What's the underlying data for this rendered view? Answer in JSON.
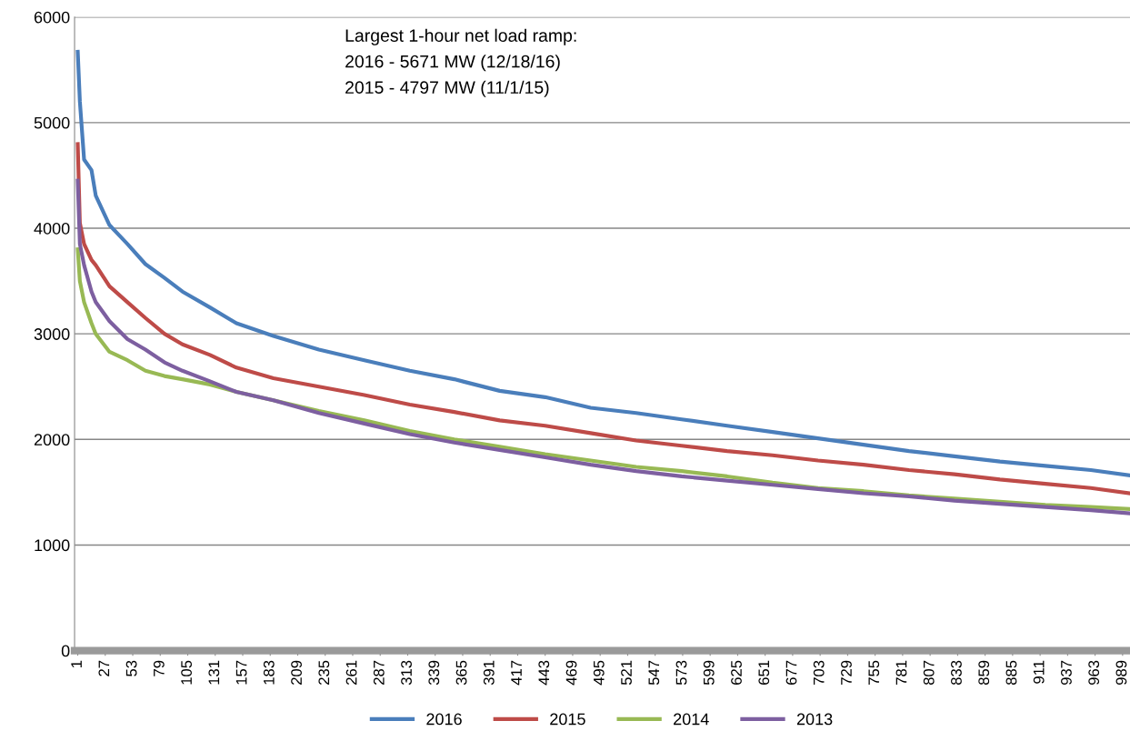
{
  "chart_data": {
    "type": "line",
    "annotations": [
      "Largest 1-hour net load ramp:",
      "2016 - 5671 MW (12/18/16)",
      "2015 - 4797 MW (11/1/15)"
    ],
    "x": [
      1,
      3,
      7,
      14,
      18,
      31,
      48,
      65,
      83,
      100,
      126,
      151,
      186,
      229,
      272,
      315,
      357,
      400,
      443,
      486,
      529,
      572,
      615,
      658,
      701,
      744,
      787,
      830,
      873,
      916,
      959,
      996
    ],
    "series": [
      {
        "name": "2016",
        "color": "#4a7ebb",
        "values": [
          5671,
          5200,
          4650,
          4550,
          4310,
          4030,
          3850,
          3660,
          3530,
          3400,
          3250,
          3100,
          2980,
          2850,
          2750,
          2650,
          2570,
          2460,
          2400,
          2300,
          2250,
          2190,
          2130,
          2070,
          2010,
          1950,
          1890,
          1840,
          1790,
          1750,
          1710,
          1660
        ]
      },
      {
        "name": "2015",
        "color": "#be4b48",
        "values": [
          4797,
          4050,
          3850,
          3700,
          3650,
          3450,
          3300,
          3150,
          3000,
          2900,
          2800,
          2680,
          2580,
          2500,
          2420,
          2330,
          2260,
          2180,
          2130,
          2060,
          1990,
          1940,
          1890,
          1850,
          1800,
          1760,
          1710,
          1670,
          1620,
          1580,
          1540,
          1490
        ]
      },
      {
        "name": "2014",
        "color": "#98b954",
        "values": [
          3800,
          3500,
          3300,
          3100,
          3000,
          2830,
          2750,
          2650,
          2600,
          2570,
          2520,
          2450,
          2370,
          2270,
          2180,
          2080,
          2000,
          1930,
          1860,
          1800,
          1740,
          1700,
          1650,
          1590,
          1540,
          1510,
          1470,
          1440,
          1410,
          1380,
          1360,
          1340
        ]
      },
      {
        "name": "2013",
        "color": "#7d5fa0",
        "values": [
          4450,
          3850,
          3650,
          3400,
          3300,
          3120,
          2950,
          2850,
          2730,
          2650,
          2550,
          2450,
          2370,
          2250,
          2150,
          2050,
          1970,
          1900,
          1830,
          1760,
          1700,
          1650,
          1610,
          1570,
          1530,
          1490,
          1460,
          1420,
          1390,
          1360,
          1330,
          1300
        ]
      }
    ],
    "xlim": [
      -2,
      996
    ],
    "xticks": [
      1,
      27,
      53,
      79,
      105,
      131,
      157,
      183,
      209,
      235,
      261,
      287,
      313,
      339,
      365,
      391,
      417,
      443,
      469,
      495,
      521,
      547,
      573,
      599,
      625,
      651,
      677,
      703,
      729,
      755,
      781,
      807,
      833,
      859,
      885,
      911,
      937,
      963,
      989
    ],
    "ylim": [
      0,
      6000
    ],
    "yticks": [
      0,
      1000,
      2000,
      3000,
      4000,
      5000,
      6000
    ],
    "grid": "y",
    "legend": "bottom"
  }
}
